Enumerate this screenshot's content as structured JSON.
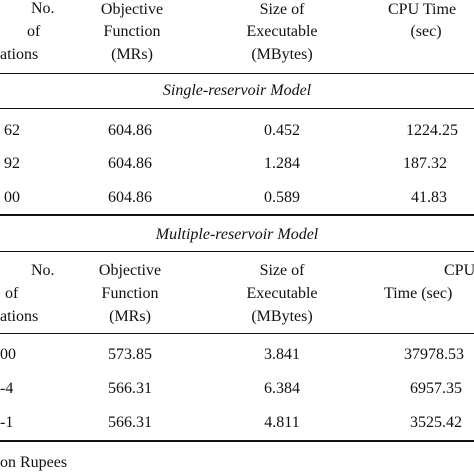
{
  "single_header": {
    "col1": [
      "No.",
      "of",
      "ations"
    ],
    "col2": [
      "Objective",
      "Function",
      "(MRs)"
    ],
    "col3": [
      "Size of",
      "Executable",
      "(MBytes)"
    ],
    "col4": [
      "CPU Time",
      "(sec)"
    ]
  },
  "single_section_title": "Single-reservoir Model",
  "single_rows": [
    [
      "62",
      "604.86",
      "0.452",
      "1224.25"
    ],
    [
      "92",
      "604.86",
      "1.284",
      "187.32"
    ],
    [
      "00",
      "604.86",
      "0.589",
      "41.83"
    ]
  ],
  "multi_section_title": "Multiple-reservoir Model",
  "multi_header": {
    "col1": [
      "No.",
      "of",
      "ations"
    ],
    "col2": [
      "Objective",
      "Function",
      "(MRs)"
    ],
    "col3": [
      "Size of",
      "Executable",
      "(MBytes)"
    ],
    "col4": [
      "CPU",
      "Time (sec)"
    ]
  },
  "multi_rows": [
    [
      "00",
      "573.85",
      "3.841",
      "37978.53"
    ],
    [
      "-4",
      "566.31",
      "6.384",
      "6957.35"
    ],
    [
      "-1",
      "566.31",
      "4.811",
      "3525.42"
    ]
  ],
  "footnote": "on Rupees"
}
